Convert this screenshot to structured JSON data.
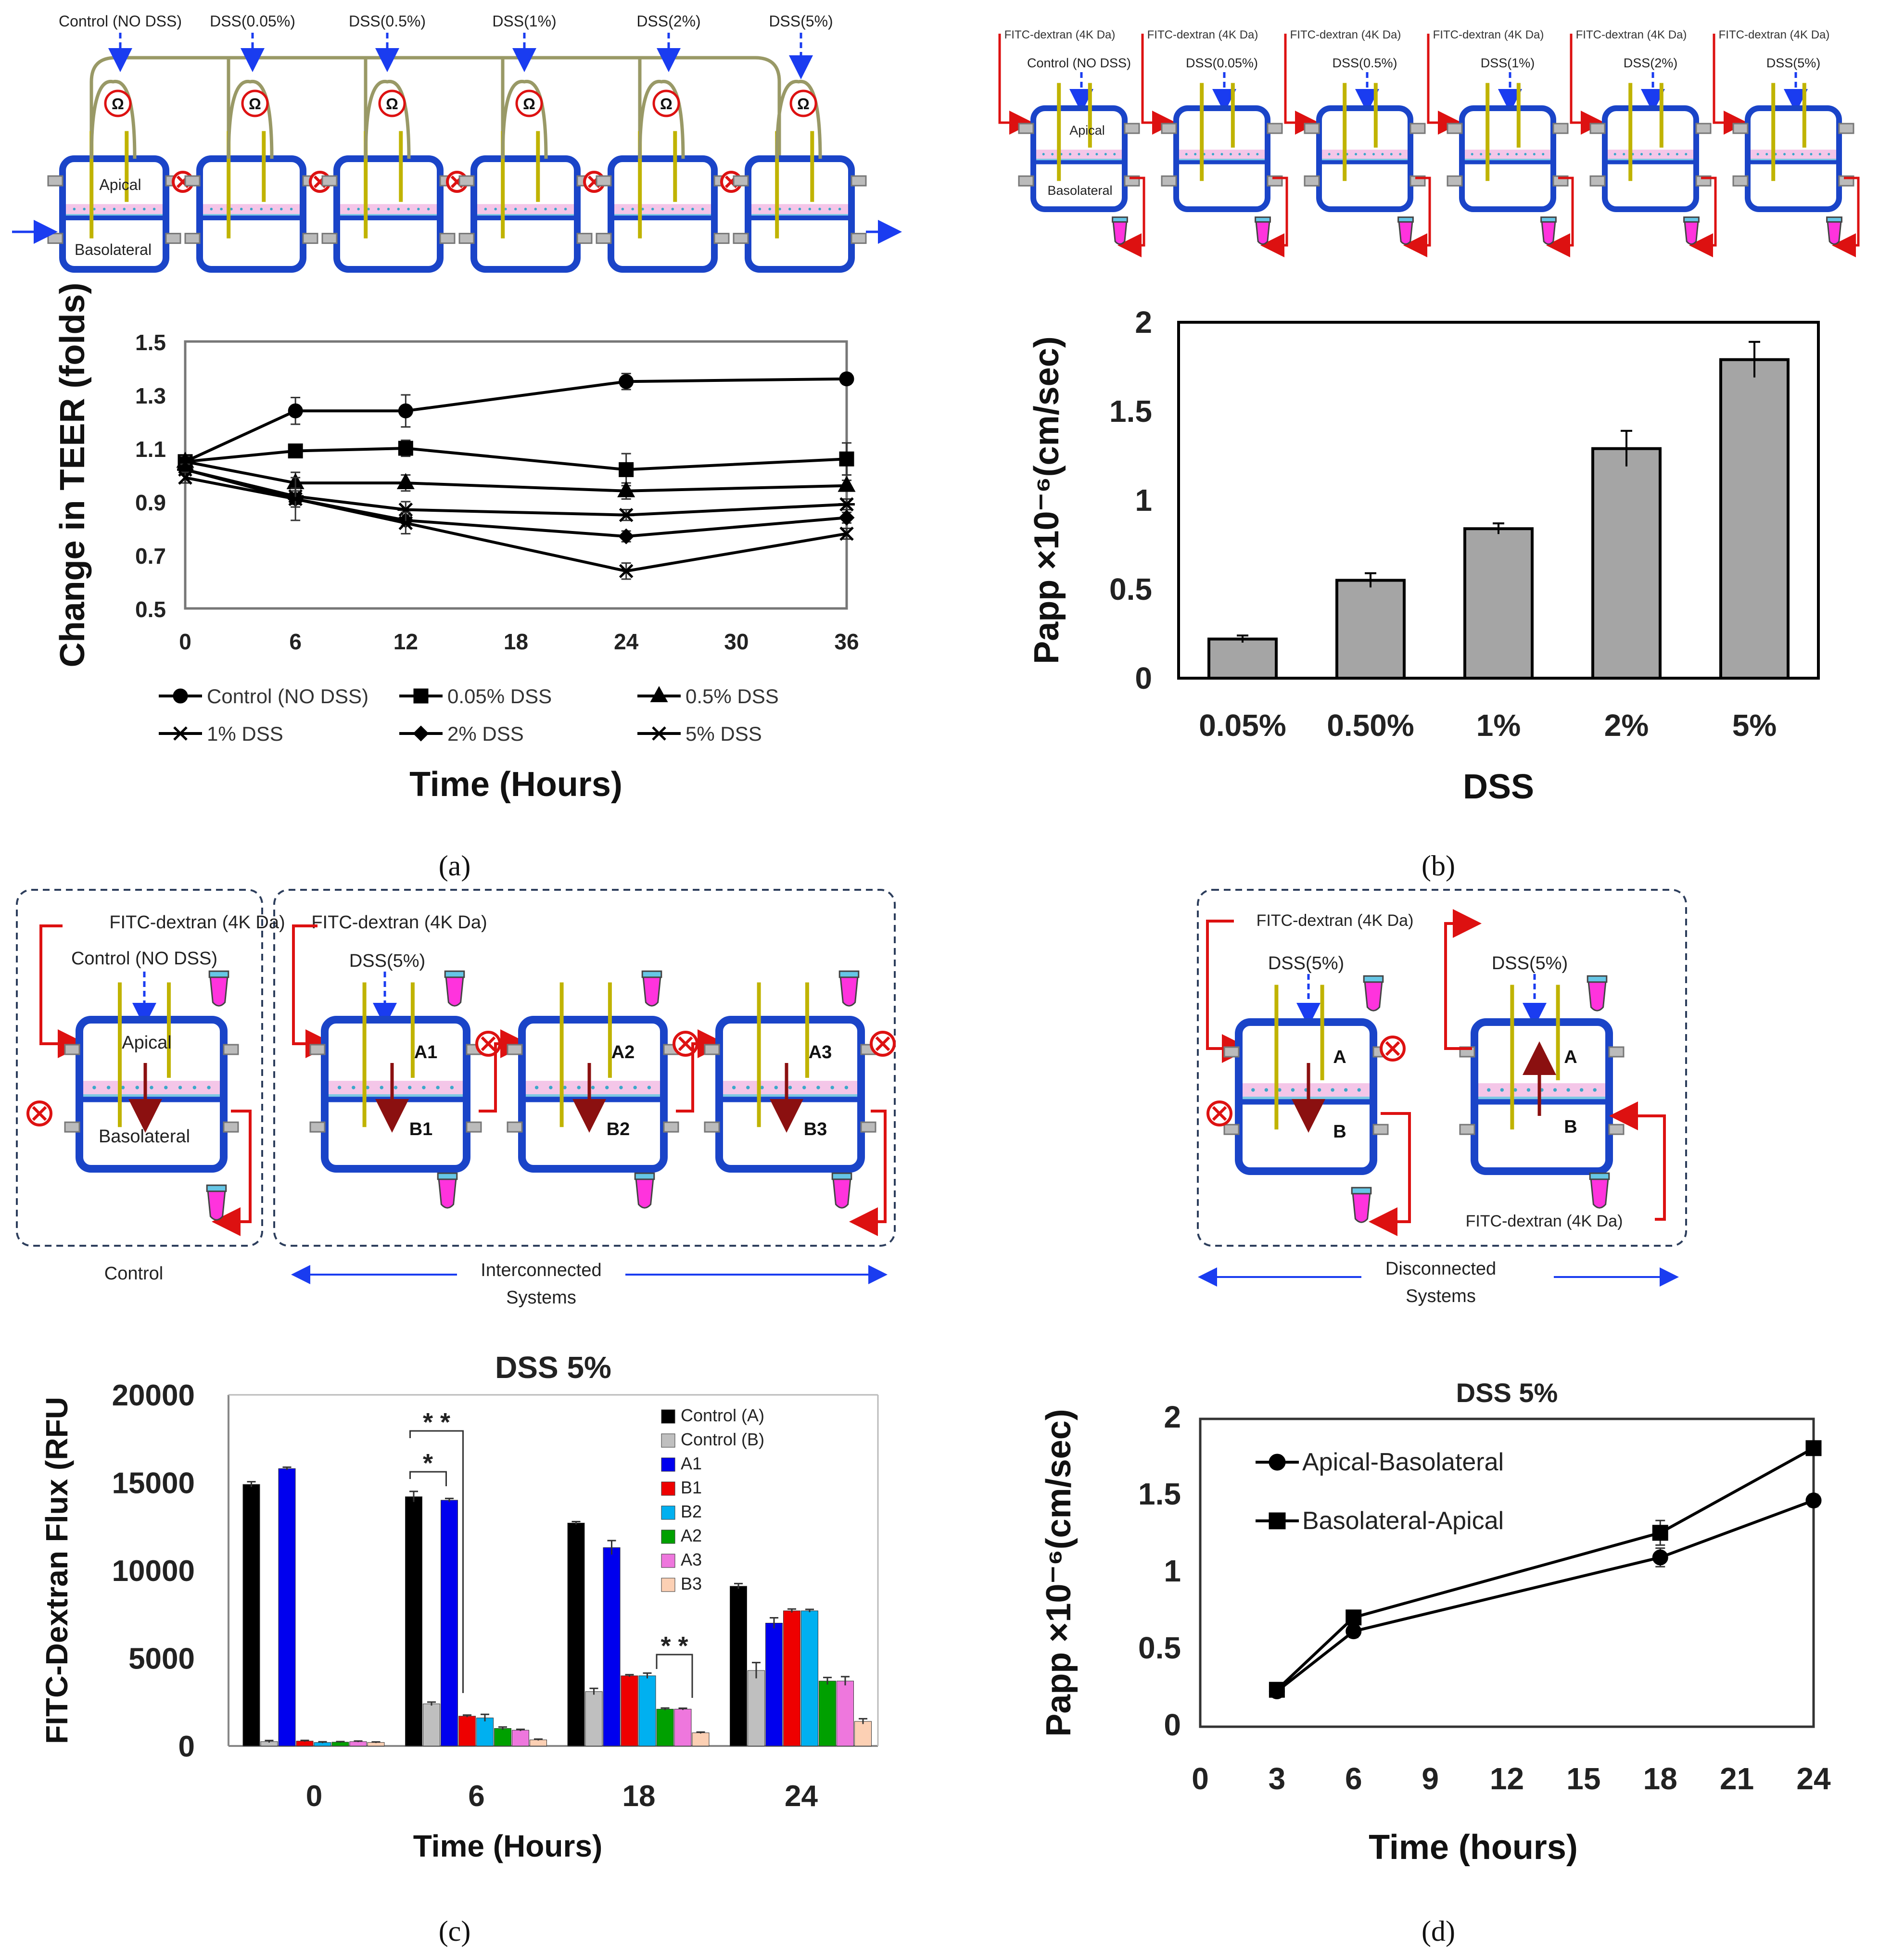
{
  "panels": {
    "a": {
      "label": "(a)",
      "diagram": {
        "top_labels": [
          "Control (NO DSS)",
          "DSS(0.05%)",
          "DSS(0.5%)",
          "DSS(1%)",
          "DSS(2%)",
          "DSS(5%)"
        ],
        "apical": "Apical",
        "basolateral": "Basolateral",
        "ohm": "Ω"
      }
    },
    "b": {
      "label": "(b)",
      "diagram": {
        "fitc": "FITC-dextran (4K Da)",
        "labels": [
          "Control (NO DSS)",
          "DSS(0.05%)",
          "DSS(0.5%)",
          "DSS(1%)",
          "DSS(2%)",
          "DSS(5%)"
        ],
        "apical": "Apical",
        "basolateral": "Basolateral"
      }
    },
    "c": {
      "label": "(c)",
      "diagram": {
        "fitc": "FITC-dextran (4K Da)",
        "control_label": "Control (NO DSS)",
        "dss": "DSS(5%)",
        "apical": "Apical",
        "basolateral": "Basolateral",
        "chambers": [
          [
            "A1",
            "B1"
          ],
          [
            "A2",
            "B2"
          ],
          [
            "A3",
            "B3"
          ]
        ],
        "control_caption": "Control",
        "interconnected_caption": [
          "Interconnected",
          "Systems"
        ]
      }
    },
    "d": {
      "label": "(d)",
      "diagram": {
        "fitc": "FITC-dextran (4K Da)",
        "dss": "DSS(5%)",
        "a": "A",
        "b": "B",
        "caption": [
          "Disconnected",
          "Systems"
        ]
      }
    }
  },
  "chart_data": [
    {
      "id": "a",
      "type": "line",
      "title": "",
      "xlabel": "Time (Hours)",
      "ylabel": "Change in TEER (folds)",
      "xlim": [
        0,
        36
      ],
      "ylim": [
        0.5,
        1.5
      ],
      "xticks": [
        0,
        6,
        12,
        18,
        24,
        30,
        36
      ],
      "yticks": [
        "0.5",
        "0.7",
        "0.9",
        "1.1",
        "1.3",
        "1.5"
      ],
      "x": [
        0,
        6,
        12,
        24,
        36
      ],
      "series": [
        {
          "name": "Control (NO DSS)",
          "marker": "circle",
          "values": [
            1.05,
            1.24,
            1.24,
            1.35,
            1.36
          ],
          "err": [
            0.02,
            0.05,
            0.06,
            0.03,
            0.02
          ]
        },
        {
          "name": "0.05% DSS",
          "marker": "square",
          "values": [
            1.05,
            1.09,
            1.1,
            1.02,
            1.06
          ],
          "err": [
            0.02,
            0.02,
            0.03,
            0.06,
            0.06
          ]
        },
        {
          "name": "0.5% DSS",
          "marker": "triangle",
          "values": [
            1.05,
            0.97,
            0.97,
            0.94,
            0.96
          ],
          "err": [
            0.02,
            0.04,
            0.03,
            0.03,
            0.02
          ]
        },
        {
          "name": "1% DSS",
          "marker": "star",
          "values": [
            1.02,
            0.92,
            0.87,
            0.85,
            0.89
          ],
          "err": [
            0.02,
            0.03,
            0.03,
            0.02,
            0.02
          ]
        },
        {
          "name": "2% DSS",
          "marker": "diamond",
          "values": [
            1.02,
            0.91,
            0.83,
            0.77,
            0.84
          ],
          "err": [
            0.02,
            0.03,
            0.02,
            0.02,
            0.02
          ]
        },
        {
          "name": "5% DSS",
          "marker": "x",
          "values": [
            0.99,
            0.91,
            0.82,
            0.64,
            0.78
          ],
          "err": [
            0.02,
            0.08,
            0.04,
            0.03,
            0.02
          ]
        }
      ]
    },
    {
      "id": "b",
      "type": "bar",
      "title": "",
      "xlabel": "DSS",
      "ylabel": "Papp ×10⁻⁶(cm/sec)",
      "ylim": [
        0,
        2
      ],
      "yticks": [
        "0",
        "0.5",
        "1",
        "1.5",
        "2"
      ],
      "categories": [
        "0.05%",
        "0.50%",
        "1%",
        "2%",
        "5%"
      ],
      "values": [
        0.22,
        0.55,
        0.84,
        1.29,
        1.79
      ],
      "err": [
        0.02,
        0.04,
        0.03,
        0.1,
        0.1
      ]
    },
    {
      "id": "c",
      "type": "bar",
      "title": "DSS 5%",
      "xlabel": "Time (Hours)",
      "ylabel": "FITC-Dextran Flux (RFU",
      "ylim": [
        0,
        20000
      ],
      "yticks": [
        "0",
        "5000",
        "10000",
        "15000",
        "20000"
      ],
      "categories": [
        "0",
        "6",
        "18",
        "24"
      ],
      "series": [
        {
          "name": "Control (A)",
          "color": "#000000",
          "values": [
            14900,
            14200,
            12700,
            9100
          ],
          "err": [
            150,
            300,
            80,
            150
          ]
        },
        {
          "name": "Control (B)",
          "color": "#bfbfbf",
          "values": [
            250,
            2400,
            3100,
            4300
          ],
          "err": [
            60,
            100,
            180,
            450
          ]
        },
        {
          "name": "A1",
          "color": "#0000ee",
          "values": [
            15800,
            14000,
            11300,
            7000
          ],
          "err": [
            80,
            100,
            400,
            300
          ]
        },
        {
          "name": "B1",
          "color": "#ee0000",
          "values": [
            280,
            1700,
            4000,
            7700
          ],
          "err": [
            40,
            60,
            60,
            100
          ]
        },
        {
          "name": "B2",
          "color": "#00b0f0",
          "values": [
            200,
            1600,
            4000,
            7700
          ],
          "err": [
            40,
            200,
            150,
            80
          ]
        },
        {
          "name": "A2",
          "color": "#00a000",
          "values": [
            220,
            1000,
            2100,
            3700
          ],
          "err": [
            30,
            80,
            60,
            200
          ]
        },
        {
          "name": "A3",
          "color": "#ee77dd",
          "values": [
            250,
            900,
            2100,
            3700
          ],
          "err": [
            30,
            50,
            50,
            250
          ]
        },
        {
          "name": "B3",
          "color": "#fcd0b4",
          "values": [
            200,
            350,
            750,
            1400
          ],
          "err": [
            30,
            40,
            40,
            150
          ]
        }
      ],
      "annotations": [
        "* *",
        "*",
        "* *"
      ]
    },
    {
      "id": "d",
      "type": "line",
      "title": "DSS 5%",
      "xlabel": "Time (hours)",
      "ylabel": "Papp ×10⁻⁶(cm/sec)",
      "xlim": [
        0,
        24
      ],
      "ylim": [
        0,
        2
      ],
      "xticks": [
        0,
        3,
        6,
        9,
        12,
        15,
        18,
        21,
        24
      ],
      "yticks": [
        "0",
        "0.5",
        "1",
        "1.5",
        "2"
      ],
      "x": [
        3,
        6,
        18,
        24
      ],
      "series": [
        {
          "name": "Apical-Basolateral",
          "marker": "circle",
          "values": [
            0.23,
            0.62,
            1.1,
            1.47
          ],
          "err": [
            0.03,
            0.04,
            0.06,
            0.04
          ]
        },
        {
          "name": "Basolateral-Apical",
          "marker": "square",
          "values": [
            0.24,
            0.71,
            1.26,
            1.81
          ],
          "err": [
            0.03,
            0.04,
            0.08,
            0.04
          ]
        }
      ]
    }
  ]
}
